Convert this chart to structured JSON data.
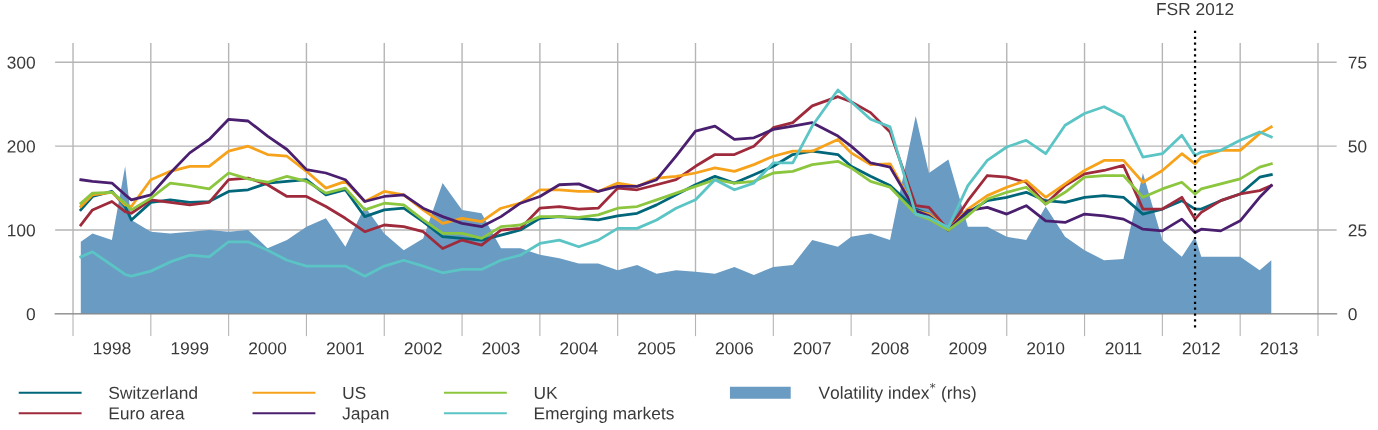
{
  "chart_data": {
    "type": "line",
    "x": [
      1998.1,
      1998.25,
      1998.5,
      1998.67,
      1998.75,
      1999.0,
      1999.25,
      1999.5,
      1999.75,
      2000.0,
      2000.25,
      2000.5,
      2000.75,
      2001.0,
      2001.25,
      2001.5,
      2001.75,
      2002.0,
      2002.25,
      2002.5,
      2002.75,
      2003.0,
      2003.25,
      2003.5,
      2003.75,
      2004.0,
      2004.25,
      2004.5,
      2004.75,
      2005.0,
      2005.25,
      2005.5,
      2005.75,
      2006.0,
      2006.25,
      2006.5,
      2006.75,
      2007.0,
      2007.25,
      2007.5,
      2007.83,
      2008.0,
      2008.25,
      2008.5,
      2008.83,
      2009.0,
      2009.25,
      2009.5,
      2009.75,
      2010.0,
      2010.25,
      2010.5,
      2010.75,
      2011.0,
      2011.25,
      2011.5,
      2011.75,
      2012.0,
      2012.25,
      2012.42,
      2012.5,
      2012.75,
      2013.0,
      2013.25,
      2013.4
    ],
    "series": [
      {
        "name": "Switzerland",
        "color": "#00667a",
        "values": [
          124,
          140,
          146,
          128,
          112,
          133,
          136,
          133,
          134,
          146,
          148,
          156,
          158,
          160,
          142,
          148,
          116,
          124,
          126,
          110,
          92,
          90,
          88,
          94,
          100,
          114,
          116,
          114,
          112,
          117,
          120,
          130,
          142,
          154,
          164,
          156,
          166,
          176,
          190,
          194,
          190,
          176,
          164,
          153,
          125,
          119,
          100,
          121,
          135,
          139,
          145,
          135,
          133,
          139,
          141,
          139,
          119,
          125,
          135,
          125,
          125,
          135,
          143,
          163,
          166
        ]
      },
      {
        "name": "Euro area",
        "color": "#9e2a3b",
        "values": [
          106,
          124,
          134,
          122,
          120,
          136,
          133,
          130,
          133,
          160,
          162,
          154,
          140,
          140,
          128,
          114,
          98,
          106,
          104,
          98,
          78,
          88,
          82,
          100,
          102,
          126,
          128,
          125,
          126,
          150,
          148,
          154,
          160,
          176,
          190,
          190,
          200,
          222,
          228,
          248,
          259,
          253,
          240,
          217,
          129,
          127,
          100,
          135,
          165,
          163,
          157,
          131,
          153,
          167,
          171,
          177,
          125,
          125,
          139,
          113,
          121,
          135,
          143,
          147,
          153
        ]
      },
      {
        "name": "US",
        "color": "#f7a21b",
        "values": [
          128,
          142,
          145,
          130,
          128,
          160,
          170,
          176,
          176,
          194,
          200,
          190,
          188,
          170,
          150,
          158,
          134,
          146,
          142,
          124,
          108,
          114,
          110,
          126,
          132,
          148,
          148,
          146,
          146,
          156,
          152,
          162,
          164,
          168,
          174,
          170,
          178,
          188,
          194,
          194,
          208,
          192,
          178,
          179,
          123,
          119,
          100,
          125,
          141,
          151,
          159,
          139,
          155,
          171,
          183,
          183,
          157,
          171,
          191,
          179,
          187,
          195,
          195,
          215,
          223
        ]
      },
      {
        "name": "Japan",
        "color": "#4b1f6f",
        "values": [
          160,
          158,
          156,
          142,
          136,
          142,
          168,
          192,
          208,
          232,
          230,
          212,
          196,
          172,
          168,
          160,
          134,
          140,
          142,
          126,
          116,
          108,
          104,
          116,
          132,
          140,
          154,
          155,
          146,
          152,
          152,
          160,
          188,
          218,
          224,
          208,
          210,
          220,
          224,
          228,
          212,
          200,
          180,
          175,
          123,
          117,
          100,
          123,
          127,
          119,
          129,
          111,
          109,
          119,
          117,
          113,
          101,
          99,
          113,
          97,
          101,
          99,
          111,
          139,
          153
        ]
      },
      {
        "name": "UK",
        "color": "#8cc63f",
        "values": [
          132,
          144,
          145,
          132,
          124,
          138,
          156,
          153,
          149,
          168,
          161,
          157,
          164,
          158,
          144,
          150,
          124,
          132,
          130,
          112,
          96,
          96,
          90,
          104,
          106,
          116,
          116,
          115,
          118,
          126,
          128,
          136,
          144,
          152,
          160,
          156,
          158,
          168,
          170,
          178,
          182,
          174,
          158,
          151,
          119,
          113,
          100,
          117,
          137,
          145,
          151,
          131,
          145,
          163,
          165,
          165,
          139,
          149,
          157,
          143,
          149,
          155,
          161,
          175,
          179
        ]
      },
      {
        "name": "Emerging markets",
        "color": "#5bc4c4",
        "values": [
          68,
          74,
          58,
          47,
          45,
          51,
          62,
          70,
          68,
          86,
          86,
          76,
          64,
          57,
          57,
          57,
          45,
          57,
          64,
          57,
          49,
          53,
          53,
          64,
          70,
          84,
          88,
          80,
          88,
          102,
          102,
          112,
          126,
          136,
          160,
          148,
          156,
          180,
          180,
          224,
          267,
          253,
          232,
          223,
          119,
          115,
          103,
          153,
          183,
          199,
          207,
          191,
          225,
          239,
          247,
          235,
          187,
          191,
          213,
          189,
          193,
          195,
          207,
          217,
          211
        ]
      },
      {
        "name": "Volatility index$^{*}$ (rhs)",
        "type": "area",
        "axis": "y2",
        "color": "#6a9bc3",
        "values": [
          21.5,
          24,
          22,
          44,
          28,
          24.5,
          24,
          24.5,
          25,
          24.5,
          25,
          19.6,
          22,
          26,
          28.5,
          20,
          32,
          24,
          19,
          22.5,
          39,
          31,
          30,
          19.6,
          19.6,
          17.6,
          16.6,
          15,
          15,
          13,
          14.6,
          12,
          13,
          12.6,
          12,
          14,
          11.6,
          14,
          14.6,
          22,
          20,
          23,
          24,
          22,
          59,
          42,
          46,
          26,
          26,
          23,
          22,
          32,
          23,
          19,
          16,
          16.4,
          42,
          22,
          17,
          23,
          17,
          17,
          17,
          13,
          16
        ]
      }
    ],
    "ylim": [
      0,
      323
    ],
    "yticks": [
      0,
      100,
      200,
      300
    ],
    "y2lim": [
      0,
      80.75
    ],
    "y2ticks": [
      0,
      25,
      50,
      75
    ],
    "xlim": [
      1997.77,
      2014.24
    ],
    "xticks": [
      {
        "value": 1998,
        "label": null
      },
      {
        "value": 1998.5,
        "label": "1998"
      },
      {
        "value": 1999,
        "label": null
      },
      {
        "value": 1999.5,
        "label": "1999"
      },
      {
        "value": 2000,
        "label": null
      },
      {
        "value": 2000.5,
        "label": "2000"
      },
      {
        "value": 2001,
        "label": null
      },
      {
        "value": 2001.5,
        "label": "2001"
      },
      {
        "value": 2002,
        "label": null
      },
      {
        "value": 2002.5,
        "label": "2002"
      },
      {
        "value": 2003,
        "label": null
      },
      {
        "value": 2003.5,
        "label": "2003"
      },
      {
        "value": 2004,
        "label": null
      },
      {
        "value": 2004.5,
        "label": "2004"
      },
      {
        "value": 2005,
        "label": null
      },
      {
        "value": 2005.5,
        "label": "2005"
      },
      {
        "value": 2006,
        "label": null
      },
      {
        "value": 2006.5,
        "label": "2006"
      },
      {
        "value": 2007,
        "label": null
      },
      {
        "value": 2007.5,
        "label": "2007"
      },
      {
        "value": 2008,
        "label": null
      },
      {
        "value": 2008.5,
        "label": "2008"
      },
      {
        "value": 2009,
        "label": null
      },
      {
        "value": 2009.5,
        "label": "2009"
      },
      {
        "value": 2010,
        "label": null
      },
      {
        "value": 2010.5,
        "label": "2010"
      },
      {
        "value": 2011,
        "label": null
      },
      {
        "value": 2011.5,
        "label": "2011"
      },
      {
        "value": 2012,
        "label": null
      },
      {
        "value": 2012.5,
        "label": "2012"
      },
      {
        "value": 2013,
        "label": null
      },
      {
        "value": 2013.5,
        "label": "2013"
      },
      {
        "value": 2014,
        "label": null
      }
    ],
    "ref_lines": [
      {
        "axis": "x",
        "value": 2012.42,
        "label": "FSR 2012",
        "color": "#000000",
        "line_style": "dotted"
      }
    ],
    "grid": true,
    "legend": "bottom left"
  }
}
